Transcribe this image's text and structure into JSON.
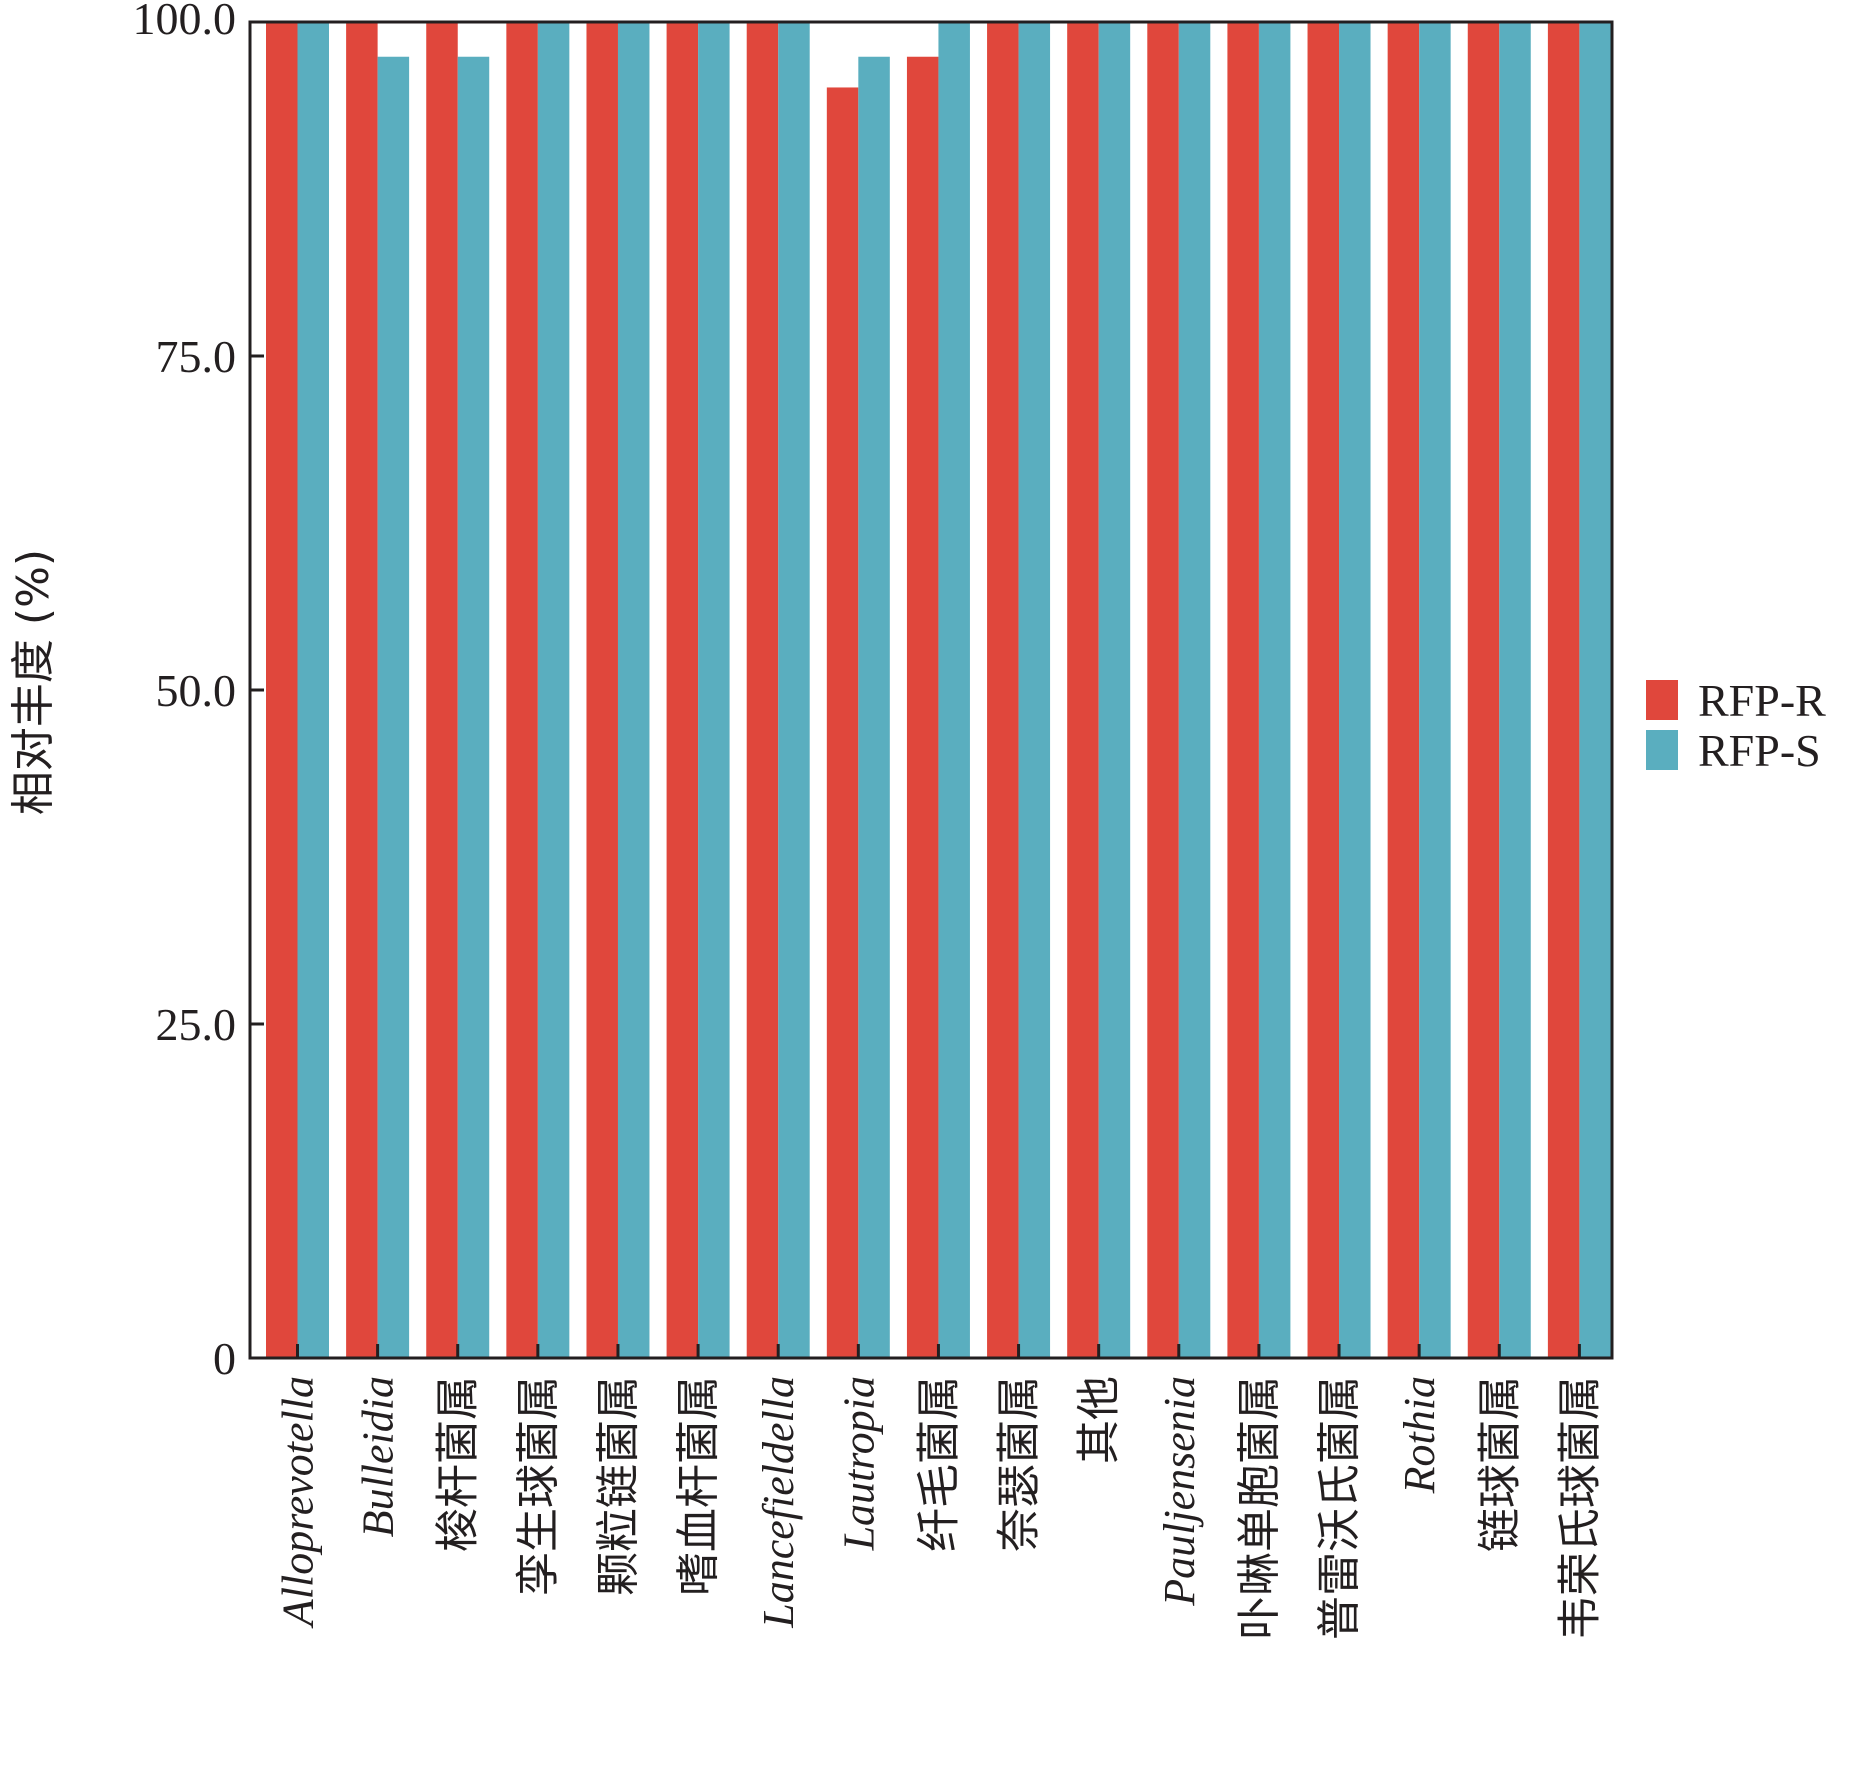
{
  "chart_data": {
    "type": "bar",
    "title": "",
    "xlabel": "",
    "ylabel": "相对丰度 (%)",
    "ylim": [
      0,
      100
    ],
    "yticks": [
      "0",
      "25.0",
      "50.0",
      "75.0",
      "100.0"
    ],
    "grid": false,
    "legend_position": "right",
    "categories": [
      "Alloprevotella",
      "Bulleidia",
      "梭杆菌属",
      "孪生球菌属",
      "颗粒链菌属",
      "嗜血杆菌属",
      "Lancefieldella",
      "Lautropia",
      "纤毛菌属",
      "奈瑟菌属",
      "其他",
      "Pauljensenia",
      "卟啉单胞菌属",
      "普雷沃氏菌属",
      "Rothia",
      "链球菌属",
      "韦荣氏球菌属"
    ],
    "italic_categories": [
      "Alloprevotella",
      "Bulleidia",
      "Lancefieldella",
      "Lautropia",
      "Pauljensenia",
      "Rothia"
    ],
    "series": [
      {
        "name": "RFP-R",
        "color": "#e0473c",
        "values": [
          100,
          100,
          100,
          100,
          100,
          100,
          100,
          95.1,
          97.4,
          100,
          100,
          100,
          100,
          100,
          100,
          100,
          100
        ]
      },
      {
        "name": "RFP-S",
        "color": "#5aaebf",
        "values": [
          100,
          97.4,
          97.4,
          100,
          100,
          100,
          100,
          97.4,
          100,
          100,
          100,
          100,
          100,
          100,
          100,
          100,
          100
        ]
      }
    ]
  }
}
